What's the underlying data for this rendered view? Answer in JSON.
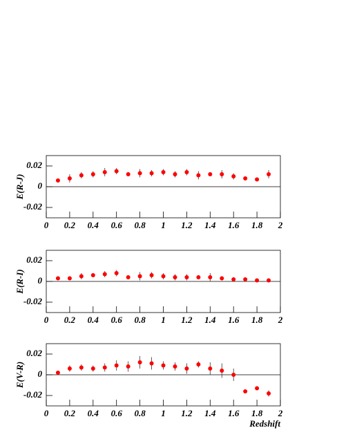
{
  "chart_data": [
    {
      "type": "scatter",
      "ylabel": "E(R-J)",
      "color": "#ff0000",
      "x": [
        0.1,
        0.2,
        0.3,
        0.4,
        0.5,
        0.6,
        0.7,
        0.8,
        0.9,
        1.0,
        1.1,
        1.2,
        1.3,
        1.4,
        1.5,
        1.6,
        1.7,
        1.8,
        1.9
      ],
      "values": [
        0.006,
        0.008,
        0.011,
        0.012,
        0.014,
        0.015,
        0.012,
        0.013,
        0.013,
        0.014,
        0.012,
        0.014,
        0.011,
        0.012,
        0.012,
        0.01,
        0.008,
        0.007,
        0.012
      ],
      "errors": [
        0.001,
        0.004,
        0.003,
        0.003,
        0.004,
        0.003,
        0.002,
        0.004,
        0.003,
        0.003,
        0.003,
        0.003,
        0.004,
        0.002,
        0.004,
        0.003,
        0.002,
        0.001,
        0.004
      ],
      "xlim": [
        0,
        2
      ],
      "xticks": [
        0,
        0.2,
        0.4,
        0.6,
        0.8,
        1,
        1.2,
        1.4,
        1.6,
        1.8,
        2
      ],
      "ylim": [
        -0.03,
        0.03
      ],
      "yticks": [
        -0.02,
        0,
        0.02
      ],
      "zero_line": true
    },
    {
      "type": "scatter",
      "ylabel": "E(R-I)",
      "color": "#ff0000",
      "x": [
        0.1,
        0.2,
        0.3,
        0.4,
        0.5,
        0.6,
        0.7,
        0.8,
        0.9,
        1.0,
        1.1,
        1.2,
        1.3,
        1.4,
        1.5,
        1.6,
        1.7,
        1.8,
        1.9
      ],
      "values": [
        0.003,
        0.003,
        0.005,
        0.006,
        0.007,
        0.008,
        0.004,
        0.005,
        0.006,
        0.005,
        0.004,
        0.004,
        0.004,
        0.004,
        0.003,
        0.002,
        0.002,
        0.001,
        0.001
      ],
      "errors": [
        0.001,
        0.002,
        0.003,
        0.002,
        0.003,
        0.003,
        0.002,
        0.004,
        0.003,
        0.003,
        0.003,
        0.003,
        0.002,
        0.004,
        0.002,
        0.001,
        0.001,
        0.001,
        0.002
      ],
      "xlim": [
        0,
        2
      ],
      "xticks": [
        0,
        0.2,
        0.4,
        0.6,
        0.8,
        1,
        1.2,
        1.4,
        1.6,
        1.8,
        2
      ],
      "ylim": [
        -0.03,
        0.03
      ],
      "yticks": [
        -0.02,
        0,
        0.02
      ],
      "zero_line": true
    },
    {
      "type": "scatter",
      "ylabel": "E(V-R)",
      "xlabel": "Redshift",
      "color": "#ff0000",
      "x": [
        0.1,
        0.2,
        0.3,
        0.4,
        0.5,
        0.6,
        0.7,
        0.8,
        0.9,
        1.0,
        1.1,
        1.2,
        1.3,
        1.4,
        1.5,
        1.6,
        1.7,
        1.8,
        1.9
      ],
      "values": [
        0.002,
        0.006,
        0.007,
        0.006,
        0.007,
        0.009,
        0.008,
        0.012,
        0.011,
        0.009,
        0.008,
        0.006,
        0.01,
        0.006,
        0.004,
        0.0,
        -0.016,
        -0.013,
        -0.018
      ],
      "errors": [
        0.001,
        0.003,
        0.003,
        0.003,
        0.004,
        0.005,
        0.005,
        0.006,
        0.006,
        0.004,
        0.004,
        0.005,
        0.003,
        0.006,
        0.007,
        0.006,
        0.001,
        0.001,
        0.003
      ],
      "xlim": [
        0,
        2
      ],
      "xticks": [
        0,
        0.2,
        0.4,
        0.6,
        0.8,
        1,
        1.2,
        1.4,
        1.6,
        1.8,
        2
      ],
      "ylim": [
        -0.03,
        0.03
      ],
      "yticks": [
        -0.02,
        0,
        0.02
      ],
      "zero_line": true
    }
  ]
}
